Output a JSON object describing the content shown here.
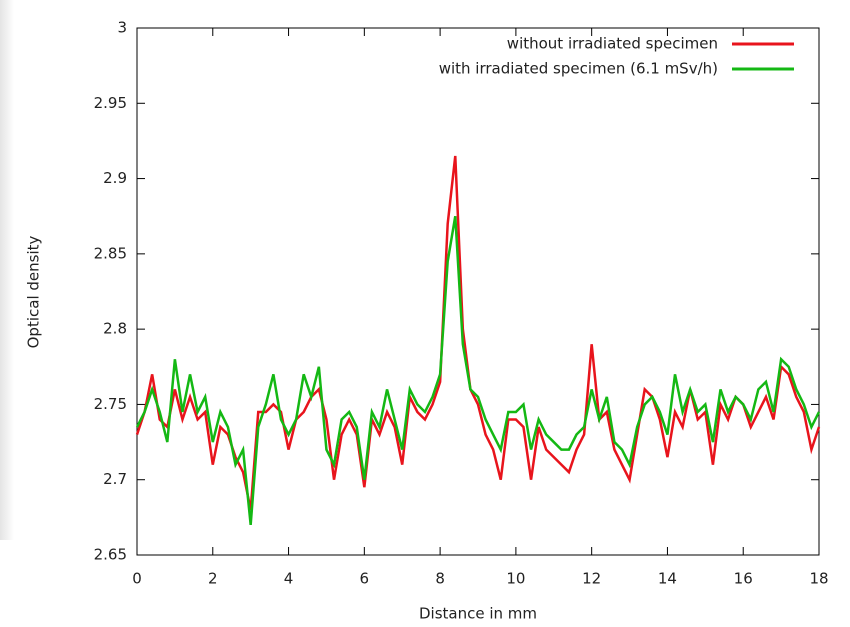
{
  "chart_data": {
    "type": "line",
    "xlabel": "Distance in mm",
    "ylabel": "Optical density",
    "xlim": [
      0,
      18
    ],
    "xticks": [
      0,
      2,
      4,
      6,
      8,
      10,
      12,
      14,
      16,
      18
    ],
    "ylim": [
      2.65,
      3
    ],
    "yticks": [
      2.65,
      2.7,
      2.75,
      2.8,
      2.85,
      2.9,
      2.95,
      3
    ],
    "legend": "top-right",
    "x": [
      0,
      0.2,
      0.4,
      0.6,
      0.8,
      1,
      1.2,
      1.4,
      1.6,
      1.8,
      2,
      2.2,
      2.4,
      2.6,
      2.8,
      3,
      3.2,
      3.4,
      3.6,
      3.8,
      4,
      4.2,
      4.4,
      4.6,
      4.8,
      5,
      5.2,
      5.4,
      5.6,
      5.8,
      6,
      6.2,
      6.4,
      6.6,
      6.8,
      7,
      7.2,
      7.4,
      7.6,
      7.8,
      8,
      8.2,
      8.4,
      8.6,
      8.8,
      9,
      9.2,
      9.4,
      9.6,
      9.8,
      10,
      10.2,
      10.4,
      10.6,
      10.8,
      11,
      11.2,
      11.4,
      11.6,
      11.8,
      12,
      12.2,
      12.4,
      12.6,
      12.8,
      13,
      13.2,
      13.4,
      13.6,
      13.8,
      14,
      14.2,
      14.4,
      14.6,
      14.8,
      15,
      15.2,
      15.4,
      15.6,
      15.8,
      16,
      16.2,
      16.4,
      16.6,
      16.8,
      17,
      17.2,
      17.4,
      17.6,
      17.8,
      18
    ],
    "series": [
      {
        "name": "without irradiated specimen",
        "color": "#e8141c",
        "values": [
          2.73,
          2.745,
          2.77,
          2.74,
          2.735,
          2.76,
          2.74,
          2.755,
          2.74,
          2.745,
          2.71,
          2.735,
          2.73,
          2.715,
          2.705,
          2.68,
          2.745,
          2.745,
          2.75,
          2.745,
          2.72,
          2.74,
          2.745,
          2.755,
          2.76,
          2.74,
          2.7,
          2.73,
          2.74,
          2.73,
          2.695,
          2.74,
          2.73,
          2.745,
          2.735,
          2.71,
          2.755,
          2.745,
          2.74,
          2.75,
          2.765,
          2.87,
          2.915,
          2.8,
          2.76,
          2.75,
          2.73,
          2.72,
          2.7,
          2.74,
          2.74,
          2.735,
          2.7,
          2.735,
          2.72,
          2.715,
          2.71,
          2.705,
          2.72,
          2.73,
          2.79,
          2.74,
          2.745,
          2.72,
          2.71,
          2.7,
          2.73,
          2.76,
          2.755,
          2.74,
          2.715,
          2.745,
          2.735,
          2.76,
          2.74,
          2.745,
          2.71,
          2.75,
          2.74,
          2.755,
          2.75,
          2.735,
          2.745,
          2.755,
          2.74,
          2.775,
          2.77,
          2.755,
          2.745,
          2.72,
          2.735
        ]
      },
      {
        "name": "with irradiated specimen (6.1 mSv/h)",
        "color": "#14b814",
        "values": [
          2.735,
          2.745,
          2.76,
          2.745,
          2.725,
          2.78,
          2.745,
          2.77,
          2.745,
          2.755,
          2.725,
          2.745,
          2.735,
          2.71,
          2.72,
          2.67,
          2.735,
          2.75,
          2.77,
          2.74,
          2.73,
          2.74,
          2.77,
          2.755,
          2.775,
          2.72,
          2.71,
          2.74,
          2.745,
          2.735,
          2.7,
          2.745,
          2.735,
          2.76,
          2.74,
          2.72,
          2.76,
          2.75,
          2.745,
          2.755,
          2.77,
          2.845,
          2.875,
          2.79,
          2.76,
          2.755,
          2.74,
          2.73,
          2.72,
          2.745,
          2.745,
          2.75,
          2.72,
          2.74,
          2.73,
          2.725,
          2.72,
          2.72,
          2.73,
          2.735,
          2.76,
          2.74,
          2.755,
          2.725,
          2.72,
          2.71,
          2.735,
          2.75,
          2.755,
          2.745,
          2.73,
          2.77,
          2.745,
          2.76,
          2.745,
          2.75,
          2.725,
          2.76,
          2.745,
          2.755,
          2.75,
          2.74,
          2.76,
          2.765,
          2.745,
          2.78,
          2.775,
          2.76,
          2.75,
          2.735,
          2.745
        ]
      }
    ]
  }
}
